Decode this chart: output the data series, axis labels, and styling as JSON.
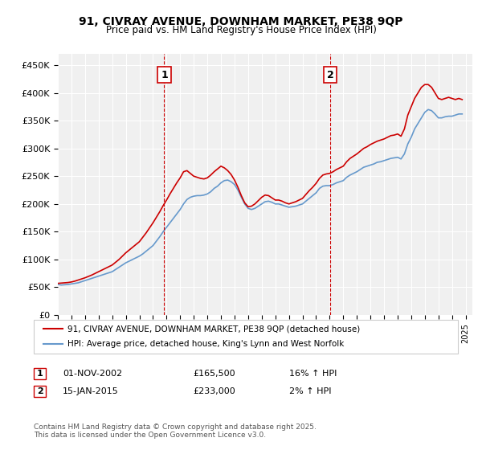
{
  "title1": "91, CIVRAY AVENUE, DOWNHAM MARKET, PE38 9QP",
  "title2": "Price paid vs. HM Land Registry's House Price Index (HPI)",
  "ylabel": "",
  "ylim": [
    0,
    470000
  ],
  "yticks": [
    0,
    50000,
    100000,
    150000,
    200000,
    250000,
    300000,
    350000,
    400000,
    450000
  ],
  "ytick_labels": [
    "£0",
    "£50K",
    "£100K",
    "£150K",
    "£200K",
    "£250K",
    "£300K",
    "£350K",
    "£400K",
    "£450K"
  ],
  "xlim_start": 1995.0,
  "xlim_end": 2025.5,
  "background_color": "#ffffff",
  "plot_bg_color": "#f0f0f0",
  "grid_color": "#ffffff",
  "red_line_color": "#cc0000",
  "blue_line_color": "#6699cc",
  "vline_color": "#cc0000",
  "legend_label_red": "91, CIVRAY AVENUE, DOWNHAM MARKET, PE38 9QP (detached house)",
  "legend_label_blue": "HPI: Average price, detached house, King's Lynn and West Norfolk",
  "transaction1_label": "1",
  "transaction1_date": "01-NOV-2002",
  "transaction1_price": "£165,500",
  "transaction1_hpi": "16% ↑ HPI",
  "transaction1_x": 2002.83,
  "transaction2_label": "2",
  "transaction2_date": "15-JAN-2015",
  "transaction2_price": "£233,000",
  "transaction2_hpi": "2% ↑ HPI",
  "transaction2_x": 2015.04,
  "footer": "Contains HM Land Registry data © Crown copyright and database right 2025.\nThis data is licensed under the Open Government Licence v3.0.",
  "hpi_data": {
    "years": [
      1995.0,
      1995.25,
      1995.5,
      1995.75,
      1996.0,
      1996.25,
      1996.5,
      1996.75,
      1997.0,
      1997.25,
      1997.5,
      1997.75,
      1998.0,
      1998.25,
      1998.5,
      1998.75,
      1999.0,
      1999.25,
      1999.5,
      1999.75,
      2000.0,
      2000.25,
      2000.5,
      2000.75,
      2001.0,
      2001.25,
      2001.5,
      2001.75,
      2002.0,
      2002.25,
      2002.5,
      2002.75,
      2003.0,
      2003.25,
      2003.5,
      2003.75,
      2004.0,
      2004.25,
      2004.5,
      2004.75,
      2005.0,
      2005.25,
      2005.5,
      2005.75,
      2006.0,
      2006.25,
      2006.5,
      2006.75,
      2007.0,
      2007.25,
      2007.5,
      2007.75,
      2008.0,
      2008.25,
      2008.5,
      2008.75,
      2009.0,
      2009.25,
      2009.5,
      2009.75,
      2010.0,
      2010.25,
      2010.5,
      2010.75,
      2011.0,
      2011.25,
      2011.5,
      2011.75,
      2012.0,
      2012.25,
      2012.5,
      2012.75,
      2013.0,
      2013.25,
      2013.5,
      2013.75,
      2014.0,
      2014.25,
      2014.5,
      2014.75,
      2015.0,
      2015.25,
      2015.5,
      2015.75,
      2016.0,
      2016.25,
      2016.5,
      2016.75,
      2017.0,
      2017.25,
      2017.5,
      2017.75,
      2018.0,
      2018.25,
      2018.5,
      2018.75,
      2019.0,
      2019.25,
      2019.5,
      2019.75,
      2020.0,
      2020.25,
      2020.5,
      2020.75,
      2021.0,
      2021.25,
      2021.5,
      2021.75,
      2022.0,
      2022.25,
      2022.5,
      2022.75,
      2023.0,
      2023.25,
      2023.5,
      2023.75,
      2024.0,
      2024.25,
      2024.5,
      2024.75
    ],
    "values": [
      55000,
      54000,
      54500,
      55000,
      56000,
      57000,
      58000,
      60000,
      62000,
      64000,
      66000,
      68000,
      70000,
      72000,
      74000,
      76000,
      78000,
      82000,
      86000,
      90000,
      94000,
      97000,
      100000,
      103000,
      106000,
      110000,
      115000,
      120000,
      125000,
      133000,
      141000,
      150000,
      158000,
      166000,
      174000,
      182000,
      190000,
      200000,
      208000,
      212000,
      214000,
      215000,
      215000,
      216000,
      218000,
      222000,
      228000,
      232000,
      238000,
      242000,
      243000,
      240000,
      235000,
      225000,
      212000,
      200000,
      192000,
      190000,
      192000,
      196000,
      200000,
      204000,
      205000,
      203000,
      200000,
      200000,
      198000,
      196000,
      194000,
      195000,
      196000,
      198000,
      200000,
      205000,
      210000,
      215000,
      220000,
      228000,
      232000,
      233000,
      233000,
      235000,
      238000,
      240000,
      242000,
      248000,
      252000,
      255000,
      258000,
      262000,
      266000,
      268000,
      270000,
      272000,
      275000,
      276000,
      278000,
      280000,
      282000,
      283000,
      284000,
      281000,
      290000,
      308000,
      320000,
      335000,
      345000,
      355000,
      365000,
      370000,
      368000,
      362000,
      355000,
      355000,
      357000,
      358000,
      358000,
      360000,
      362000,
      362000
    ]
  },
  "price_data": {
    "years": [
      1995.0,
      1995.25,
      1995.5,
      1995.75,
      1996.0,
      1996.25,
      1996.5,
      1996.75,
      1997.0,
      1997.25,
      1997.5,
      1997.75,
      1998.0,
      1998.25,
      1998.5,
      1998.75,
      1999.0,
      1999.25,
      1999.5,
      1999.75,
      2000.0,
      2000.25,
      2000.5,
      2000.75,
      2001.0,
      2001.25,
      2001.5,
      2001.75,
      2002.0,
      2002.25,
      2002.5,
      2002.75,
      2003.0,
      2003.25,
      2003.5,
      2003.75,
      2004.0,
      2004.25,
      2004.5,
      2004.75,
      2005.0,
      2005.25,
      2005.5,
      2005.75,
      2006.0,
      2006.25,
      2006.5,
      2006.75,
      2007.0,
      2007.25,
      2007.5,
      2007.75,
      2008.0,
      2008.25,
      2008.5,
      2008.75,
      2009.0,
      2009.25,
      2009.5,
      2009.75,
      2010.0,
      2010.25,
      2010.5,
      2010.75,
      2011.0,
      2011.25,
      2011.5,
      2011.75,
      2012.0,
      2012.25,
      2012.5,
      2012.75,
      2013.0,
      2013.25,
      2013.5,
      2013.75,
      2014.0,
      2014.25,
      2014.5,
      2014.75,
      2015.0,
      2015.25,
      2015.5,
      2015.75,
      2016.0,
      2016.25,
      2016.5,
      2016.75,
      2017.0,
      2017.25,
      2017.5,
      2017.75,
      2018.0,
      2018.25,
      2018.5,
      2018.75,
      2019.0,
      2019.25,
      2019.5,
      2019.75,
      2020.0,
      2020.25,
      2020.5,
      2020.75,
      2021.0,
      2021.25,
      2021.5,
      2021.75,
      2022.0,
      2022.25,
      2022.5,
      2022.75,
      2023.0,
      2023.25,
      2023.5,
      2023.75,
      2024.0,
      2024.25,
      2024.5,
      2024.75
    ],
    "values": [
      57000,
      57500,
      58000,
      58500,
      59500,
      61000,
      63000,
      65000,
      67000,
      69500,
      72000,
      75000,
      78000,
      81000,
      84000,
      87000,
      90000,
      95000,
      100000,
      106000,
      112000,
      117000,
      122000,
      127000,
      132000,
      140000,
      148000,
      157000,
      166000,
      176000,
      186000,
      197000,
      207000,
      218000,
      228000,
      238000,
      247000,
      258000,
      260000,
      255000,
      250000,
      248000,
      246000,
      245000,
      247000,
      252000,
      258000,
      263000,
      268000,
      265000,
      260000,
      253000,
      243000,
      230000,
      215000,
      202000,
      195000,
      196000,
      200000,
      206000,
      212000,
      216000,
      215000,
      211000,
      207000,
      207000,
      205000,
      202000,
      200000,
      202000,
      204000,
      207000,
      210000,
      217000,
      224000,
      230000,
      237000,
      246000,
      252000,
      254000,
      255000,
      258000,
      262000,
      265000,
      268000,
      276000,
      282000,
      286000,
      290000,
      295000,
      300000,
      303000,
      307000,
      310000,
      313000,
      315000,
      317000,
      320000,
      323000,
      324000,
      326000,
      322000,
      335000,
      360000,
      375000,
      390000,
      400000,
      410000,
      415000,
      415000,
      410000,
      400000,
      390000,
      388000,
      390000,
      392000,
      390000,
      388000,
      390000,
      388000
    ]
  }
}
